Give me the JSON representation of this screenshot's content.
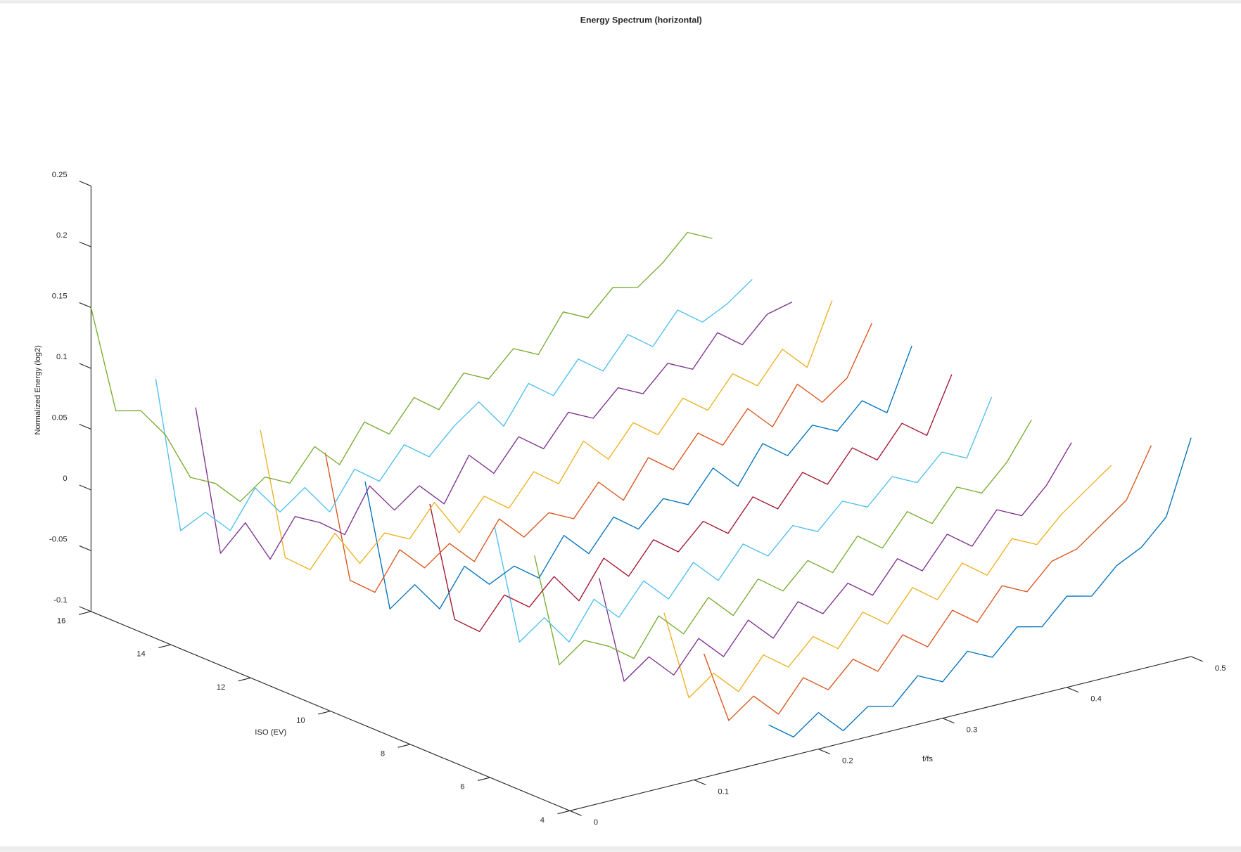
{
  "chart_data": {
    "type": "line3d",
    "title": "Energy Spectrum (horizontal)",
    "xlabel": "f/fs",
    "ylabel": "ISO (EV)",
    "zlabel": "Normalized Energy (log2)",
    "xlim": [
      0,
      0.5
    ],
    "xticks": [
      0,
      0.1,
      0.2,
      0.3,
      0.4,
      0.5
    ],
    "ylim": [
      4,
      16
    ],
    "yticks": [
      4,
      6,
      8,
      10,
      12,
      14,
      16
    ],
    "zlim": [
      -0.1,
      0.25
    ],
    "zticks": [
      -0.1,
      -0.05,
      0,
      0.05,
      0.1,
      0.15,
      0.2,
      0.25
    ],
    "x": [
      0,
      0.02,
      0.04,
      0.06,
      0.08,
      0.1,
      0.12,
      0.14,
      0.16,
      0.18,
      0.2,
      0.22,
      0.24,
      0.26,
      0.28,
      0.3,
      0.32,
      0.34,
      0.36,
      0.38,
      0.4,
      0.42,
      0.44,
      0.46,
      0.48,
      0.5
    ],
    "series": [
      {
        "iso": 4,
        "color": "#0072BD",
        "values": [
          null,
          null,
          null,
          null,
          null,
          null,
          null,
          null,
          -0.07,
          -0.085,
          -0.07,
          -0.09,
          -0.075,
          -0.08,
          -0.06,
          -0.07,
          -0.05,
          -0.06,
          -0.04,
          -0.045,
          -0.025,
          -0.03,
          -0.01,
          0.0,
          0.02,
          0.08
        ]
      },
      {
        "iso": 5,
        "color": "#D95319",
        "values": [
          null,
          null,
          null,
          null,
          null,
          null,
          null,
          -0.02,
          -0.08,
          -0.065,
          -0.085,
          -0.06,
          -0.075,
          -0.055,
          -0.07,
          -0.045,
          -0.06,
          -0.035,
          -0.05,
          -0.025,
          -0.035,
          -0.015,
          -0.01,
          0.005,
          0.02,
          0.06
        ]
      },
      {
        "iso": 6,
        "color": "#EDB120",
        "values": [
          null,
          null,
          null,
          null,
          null,
          null,
          null,
          0.0,
          -0.075,
          -0.06,
          -0.08,
          -0.055,
          -0.07,
          -0.05,
          -0.065,
          -0.04,
          -0.055,
          -0.03,
          -0.045,
          -0.02,
          -0.035,
          -0.01,
          -0.02,
          0.0,
          0.015,
          0.03
        ]
      },
      {
        "iso": 7,
        "color": "#7E2F8E",
        "values": [
          null,
          null,
          null,
          null,
          null,
          null,
          0.02,
          -0.07,
          -0.055,
          -0.075,
          -0.05,
          -0.07,
          -0.045,
          -0.065,
          -0.04,
          -0.055,
          -0.035,
          -0.05,
          -0.025,
          -0.04,
          -0.015,
          -0.03,
          -0.005,
          -0.015,
          0.005,
          0.035
        ]
      },
      {
        "iso": 8,
        "color": "#77AC30",
        "values": [
          null,
          null,
          null,
          null,
          null,
          0.03,
          -0.065,
          -0.05,
          -0.06,
          -0.075,
          -0.045,
          -0.065,
          -0.04,
          -0.06,
          -0.035,
          -0.05,
          -0.03,
          -0.045,
          -0.02,
          -0.035,
          -0.01,
          -0.025,
          0.0,
          -0.01,
          0.01,
          0.04
        ]
      },
      {
        "iso": 9,
        "color": "#4DBEEE",
        "values": [
          null,
          null,
          null,
          null,
          null,
          0.04,
          -0.06,
          -0.045,
          -0.07,
          -0.04,
          -0.06,
          -0.035,
          -0.055,
          -0.03,
          -0.05,
          -0.025,
          -0.04,
          -0.02,
          -0.03,
          -0.01,
          -0.02,
          0.0,
          -0.01,
          0.01,
          0.0,
          0.045
        ]
      },
      {
        "iso": 10,
        "color": "#A2142F",
        "values": [
          null,
          null,
          null,
          null,
          0.05,
          -0.05,
          -0.065,
          -0.04,
          -0.055,
          -0.035,
          -0.06,
          -0.03,
          -0.05,
          -0.025,
          -0.04,
          -0.02,
          -0.035,
          -0.01,
          -0.025,
          0.0,
          -0.015,
          0.01,
          -0.005,
          0.02,
          0.005,
          0.05
        ]
      },
      {
        "iso": 11,
        "color": "#0072BD",
        "values": [
          null,
          null,
          null,
          0.06,
          -0.05,
          -0.035,
          -0.06,
          -0.03,
          -0.05,
          -0.04,
          -0.055,
          -0.025,
          -0.045,
          -0.02,
          -0.035,
          -0.015,
          -0.025,
          0.0,
          -0.02,
          0.01,
          -0.005,
          0.015,
          0.005,
          0.025,
          0.01,
          0.06
        ]
      },
      {
        "iso": 12,
        "color": "#D95319",
        "values": [
          null,
          null,
          null,
          0.07,
          -0.04,
          -0.055,
          -0.025,
          -0.045,
          -0.03,
          -0.05,
          -0.02,
          -0.04,
          -0.025,
          -0.035,
          -0.01,
          -0.03,
          0.0,
          -0.015,
          0.01,
          -0.005,
          0.02,
          0.0,
          0.03,
          0.01,
          0.025,
          0.065
        ]
      },
      {
        "iso": 13,
        "color": "#EDB120",
        "values": [
          null,
          null,
          0.08,
          -0.03,
          -0.045,
          -0.02,
          -0.05,
          -0.03,
          -0.04,
          -0.015,
          -0.045,
          -0.02,
          -0.035,
          -0.01,
          -0.025,
          0.005,
          -0.015,
          0.01,
          -0.005,
          0.02,
          0.005,
          0.03,
          0.015,
          0.04,
          0.02,
          0.07
        ]
      },
      {
        "iso": 14,
        "color": "#7E2F8E",
        "values": [
          null,
          0.09,
          -0.035,
          -0.015,
          -0.05,
          -0.02,
          -0.03,
          -0.045,
          -0.01,
          -0.035,
          -0.02,
          -0.04,
          -0.005,
          -0.025,
          0.0,
          -0.015,
          0.01,
          0.0,
          0.02,
          0.01,
          0.03,
          0.02,
          0.045,
          0.03,
          0.05,
          0.055
        ]
      },
      {
        "iso": 15,
        "color": "#4DBEEE",
        "values": [
          null,
          0.1,
          -0.03,
          -0.02,
          -0.04,
          -0.01,
          -0.035,
          -0.02,
          -0.045,
          -0.015,
          -0.03,
          -0.005,
          -0.02,
          0.0,
          0.015,
          -0.01,
          0.02,
          0.005,
          0.03,
          0.015,
          0.04,
          0.025,
          0.05,
          0.035,
          0.045,
          0.06
        ]
      },
      {
        "iso": 16,
        "color": "#77AC30",
        "values": [
          0.15,
          0.06,
          0.055,
          0.03,
          -0.01,
          -0.02,
          -0.04,
          -0.025,
          -0.035,
          -0.01,
          -0.03,
          0.0,
          -0.015,
          0.01,
          -0.005,
          0.02,
          0.01,
          0.03,
          0.02,
          0.05,
          0.04,
          0.06,
          0.055,
          0.07,
          0.09,
          0.08
        ]
      }
    ]
  }
}
